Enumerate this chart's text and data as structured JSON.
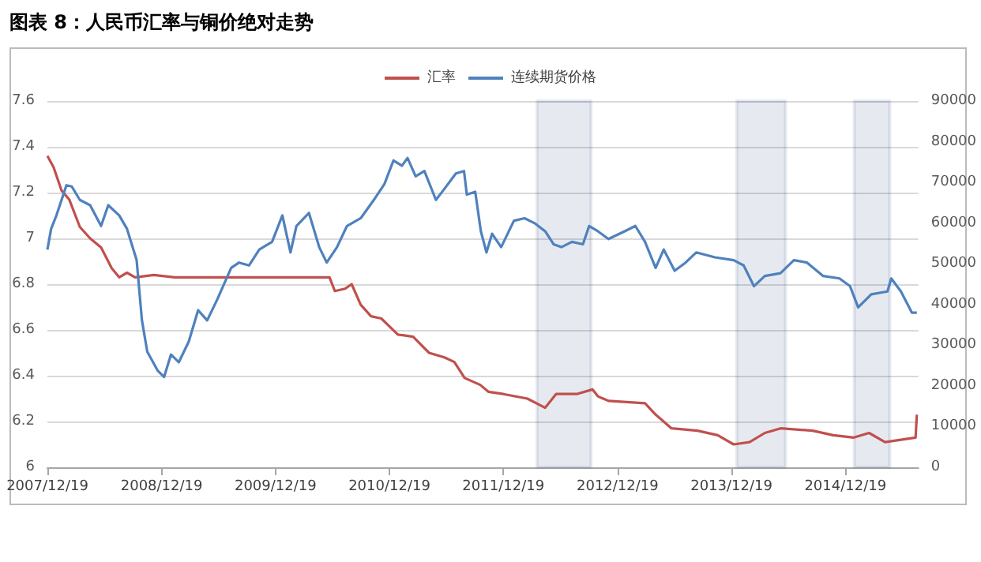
{
  "chart_data": {
    "type": "line",
    "title": "图表 8：人民币汇率与铜价绝对走势",
    "xlim": [
      "2007-12-19",
      "2015-08-10"
    ],
    "xticks": [
      {
        "value": "2007-12-19",
        "label": "2007/12/19"
      },
      {
        "value": "2008-12-19",
        "label": "2008/12/19"
      },
      {
        "value": "2009-12-19",
        "label": "2009/12/19"
      },
      {
        "value": "2010-12-19",
        "label": "2010/12/19"
      },
      {
        "value": "2011-12-19",
        "label": "2011/12/19"
      },
      {
        "value": "2012-12-19",
        "label": "2012/12/19"
      },
      {
        "value": "2013-12-19",
        "label": "2013/12/19"
      },
      {
        "value": "2014-12-19",
        "label": "2014/12/19"
      }
    ],
    "ylim": [
      6,
      7.6
    ],
    "yticks": [
      6,
      6.2,
      6.4,
      6.6,
      6.8,
      7,
      7.2,
      7.4,
      7.6
    ],
    "y2lim": [
      0,
      90000
    ],
    "y2ticks": [
      0,
      10000,
      20000,
      30000,
      40000,
      50000,
      60000,
      70000,
      80000,
      90000
    ],
    "grid": "y",
    "legend": "top",
    "bands": [
      {
        "axis": "x",
        "from": "2012-04-05",
        "to": "2012-09-25",
        "color": "#2e5486"
      },
      {
        "axis": "x",
        "from": "2014-01-05",
        "to": "2014-06-10",
        "color": "#2e5486"
      },
      {
        "axis": "x",
        "from": "2015-01-17",
        "to": "2015-05-10",
        "color": "#2e5486"
      }
    ],
    "series": [
      {
        "name": "汇率",
        "color": "#c0504d",
        "x": [
          "2007-12-19",
          "2008-01-08",
          "2008-02-02",
          "2008-02-27",
          "2008-04-01",
          "2008-05-04",
          "2008-06-08",
          "2008-07-12",
          "2008-08-05",
          "2008-08-30",
          "2008-09-25",
          "2008-11-24",
          "2009-01-30",
          "2009-05-08",
          "2009-06-28",
          "2009-11-05",
          "2010-06-10",
          "2010-06-27",
          "2010-07-30",
          "2010-08-20",
          "2010-09-18",
          "2010-10-21",
          "2010-11-23",
          "2011-01-15",
          "2011-03-05",
          "2011-04-25",
          "2011-06-13",
          "2011-07-15",
          "2011-08-17",
          "2011-10-06",
          "2011-11-01",
          "2011-12-19",
          "2012-03-05",
          "2012-05-01",
          "2012-06-05",
          "2012-08-10",
          "2012-09-30",
          "2012-10-17",
          "2012-11-20",
          "2013-03-17",
          "2013-04-20",
          "2013-06-10",
          "2013-09-01",
          "2013-11-05",
          "2013-12-26",
          "2014-02-15",
          "2014-04-05",
          "2014-05-25",
          "2014-09-05",
          "2014-11-10",
          "2015-01-15",
          "2015-03-05",
          "2015-04-25",
          "2015-08-01",
          "2015-08-05"
        ],
        "values": [
          7.36,
          7.31,
          7.21,
          7.17,
          7.05,
          7.0,
          6.96,
          6.87,
          6.83,
          6.85,
          6.83,
          6.84,
          6.83,
          6.83,
          6.83,
          6.83,
          6.83,
          6.77,
          6.78,
          6.8,
          6.71,
          6.66,
          6.65,
          6.58,
          6.57,
          6.5,
          6.48,
          6.46,
          6.39,
          6.36,
          6.33,
          6.32,
          6.3,
          6.26,
          6.32,
          6.32,
          6.34,
          6.31,
          6.29,
          6.28,
          6.23,
          6.17,
          6.16,
          6.14,
          6.1,
          6.11,
          6.15,
          6.17,
          6.16,
          6.14,
          6.13,
          6.15,
          6.11,
          6.13,
          6.23
        ]
      },
      {
        "name": "连续期货价格",
        "color": "#4f81bd",
        "axis": "y2",
        "x": [
          "2007-12-19",
          "2007-12-31",
          "2008-01-17",
          "2008-02-18",
          "2008-03-06",
          "2008-04-01",
          "2008-05-04",
          "2008-06-08",
          "2008-07-01",
          "2008-08-05",
          "2008-08-30",
          "2008-09-30",
          "2008-10-17",
          "2008-11-03",
          "2008-12-06",
          "2008-12-27",
          "2009-01-18",
          "2009-02-12",
          "2009-03-16",
          "2009-04-15",
          "2009-05-14",
          "2009-06-15",
          "2009-07-30",
          "2009-08-24",
          "2009-09-25",
          "2009-10-28",
          "2009-12-08",
          "2010-01-10",
          "2010-02-05",
          "2010-02-24",
          "2010-04-05",
          "2010-05-08",
          "2010-06-01",
          "2010-07-04",
          "2010-08-05",
          "2010-09-18",
          "2010-10-30",
          "2010-12-03",
          "2011-01-01",
          "2011-01-28",
          "2011-02-15",
          "2011-03-13",
          "2011-04-10",
          "2011-05-17",
          "2011-06-12",
          "2011-07-20",
          "2011-08-15",
          "2011-08-24",
          "2011-09-20",
          "2011-10-08",
          "2011-10-26",
          "2011-11-13",
          "2011-12-12",
          "2012-01-22",
          "2012-02-25",
          "2012-03-30",
          "2012-05-01",
          "2012-05-28",
          "2012-06-22",
          "2012-07-26",
          "2012-08-30",
          "2012-09-19",
          "2012-10-17",
          "2012-11-20",
          "2013-01-11",
          "2013-02-14",
          "2013-03-17",
          "2013-04-20",
          "2013-05-16",
          "2013-06-20",
          "2013-07-25",
          "2013-08-28",
          "2013-10-27",
          "2013-12-26",
          "2014-01-27",
          "2014-03-01",
          "2014-04-05",
          "2014-05-25",
          "2014-07-07",
          "2014-08-18",
          "2014-10-09",
          "2014-11-30",
          "2015-01-03",
          "2015-01-29",
          "2015-03-12",
          "2015-05-03",
          "2015-05-15",
          "2015-06-15",
          "2015-07-20",
          "2015-08-05"
        ],
        "values": [
          53500,
          58600,
          61900,
          69300,
          69000,
          65700,
          64400,
          59300,
          64400,
          61900,
          58600,
          50900,
          36100,
          28400,
          23800,
          22200,
          27700,
          25800,
          30900,
          38600,
          36100,
          41200,
          49000,
          50300,
          49600,
          53500,
          55400,
          61900,
          52800,
          59300,
          62500,
          54100,
          50300,
          54100,
          59300,
          61200,
          65700,
          69600,
          75400,
          74100,
          76000,
          71500,
          72800,
          65700,
          68300,
          72200,
          72800,
          67000,
          67700,
          58000,
          52800,
          57400,
          54100,
          60600,
          61200,
          59900,
          58000,
          54800,
          54100,
          55400,
          54800,
          59300,
          58000,
          56100,
          58000,
          59300,
          55400,
          49000,
          53500,
          48300,
          50300,
          52800,
          51600,
          50900,
          49600,
          44500,
          47000,
          47700,
          50900,
          50300,
          47000,
          46400,
          44500,
          39300,
          42500,
          43200,
          46400,
          43200,
          38000,
          38000
        ]
      }
    ]
  }
}
